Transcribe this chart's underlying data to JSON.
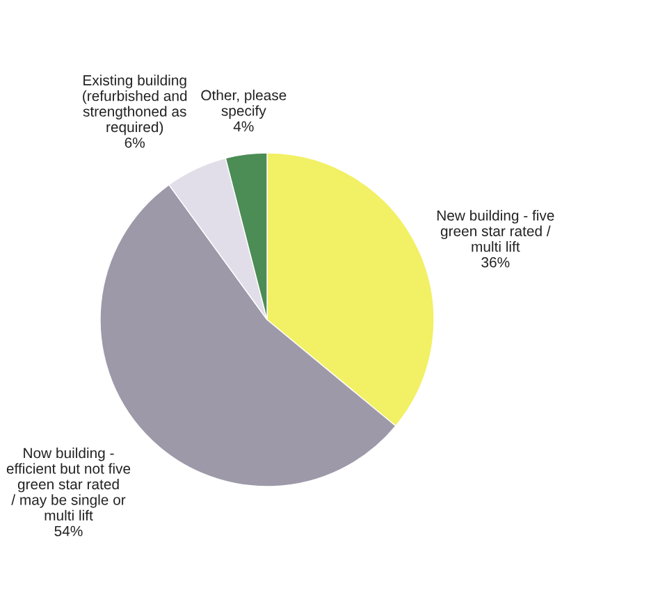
{
  "chart_data": {
    "type": "pie",
    "categories": [
      "New building - five\ngreen star rated /\nmulti lift",
      "Now building -\nefficient but not five\ngreen star rated\n/ may be single or\nmulti lift",
      "Existing building\n(refurbished and\nstrengthoned as\nrequired)",
      "Other, please\nspecify"
    ],
    "values": [
      36,
      54,
      6,
      4
    ],
    "value_labels": [
      "36%",
      "54%",
      "6%",
      "4%"
    ],
    "colors": [
      "#f2f064",
      "#9d99a9",
      "#e2dee9",
      "#4c8c55"
    ]
  }
}
